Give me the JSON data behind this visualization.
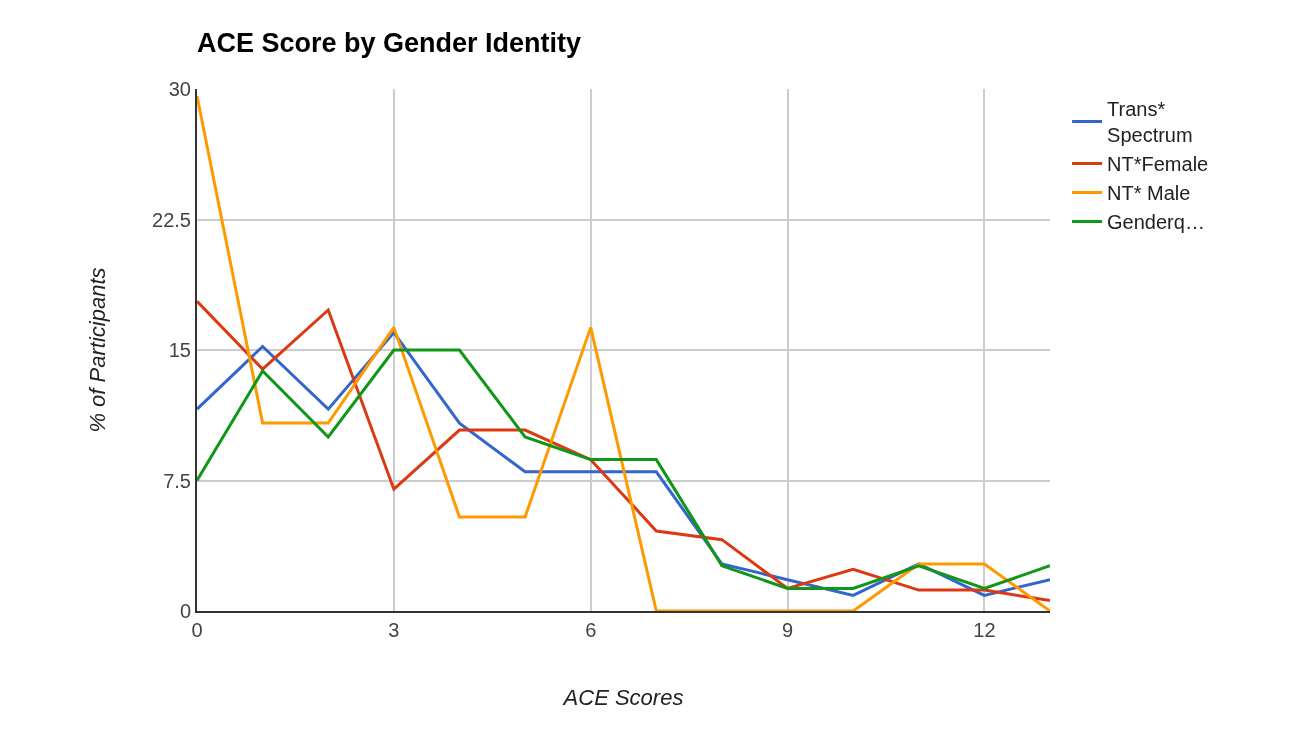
{
  "chart_data": {
    "type": "line",
    "title": "ACE Score by Gender Identity",
    "xlabel": "ACE Scores",
    "ylabel": "% of Participants",
    "x": [
      0,
      1,
      2,
      3,
      4,
      5,
      6,
      7,
      8,
      9,
      10,
      11,
      12,
      13
    ],
    "series": [
      {
        "name": "Trans* Spectrum",
        "color": "#3366cc",
        "values": [
          11.6,
          15.2,
          11.6,
          16.0,
          10.8,
          8.0,
          8.0,
          8.0,
          2.7,
          1.8,
          0.9,
          2.7,
          0.9,
          1.8
        ]
      },
      {
        "name": "NT*Female",
        "color": "#dc3912",
        "values": [
          17.8,
          13.9,
          17.3,
          7.0,
          10.4,
          10.4,
          8.7,
          4.6,
          4.1,
          1.3,
          2.4,
          1.2,
          1.2,
          0.6
        ]
      },
      {
        "name": "NT* Male",
        "color": "#ff9900",
        "values": [
          29.6,
          10.8,
          10.8,
          16.3,
          5.4,
          5.4,
          16.3,
          0,
          0,
          0,
          0,
          2.7,
          2.7,
          0
        ]
      },
      {
        "name": "Genderq…",
        "color": "#109618",
        "values": [
          7.5,
          13.8,
          10.0,
          15.0,
          15.0,
          10.0,
          8.7,
          8.7,
          2.6,
          1.3,
          1.3,
          2.6,
          1.3,
          2.6
        ]
      }
    ],
    "xlim": [
      0,
      13
    ],
    "xticks": [
      0,
      3,
      6,
      9,
      12
    ],
    "ylim": [
      0,
      30
    ],
    "yticks": [
      0,
      7.5,
      15,
      22.5,
      30
    ],
    "grid": true,
    "legend": "top right",
    "marker": "none",
    "line_style": "solid"
  }
}
